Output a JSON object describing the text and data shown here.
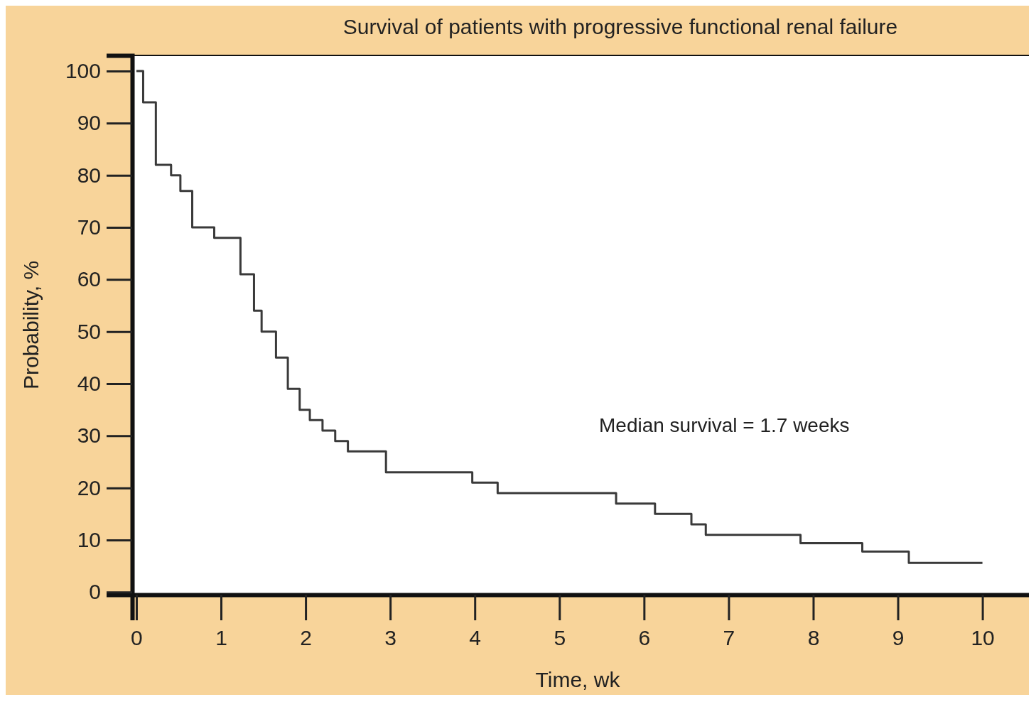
{
  "chart_data": {
    "type": "step",
    "title": "Survival of patients with progressive functional renal failure",
    "xlabel": "Time, wk",
    "ylabel": "Probability, %",
    "annotations": [
      "Median survival = 1.7 weeks"
    ],
    "x": [
      0,
      0.08,
      0.23,
      0.41,
      0.52,
      0.66,
      0.92,
      1.23,
      1.39,
      1.48,
      1.65,
      1.79,
      1.93,
      2.05,
      2.2,
      2.35,
      2.5,
      2.95,
      3.97,
      4.27,
      5.67,
      6.13,
      6.56,
      6.73,
      7.85,
      8.58,
      9.13,
      10.0
    ],
    "series": [
      {
        "color": "#3a3a3a",
        "values": [
          100,
          94,
          82,
          80,
          77,
          70,
          68,
          61,
          54,
          50,
          45,
          39,
          35,
          33,
          31,
          29,
          27,
          23,
          21,
          19,
          17,
          15,
          13,
          11,
          9.4,
          7.8,
          5.6,
          5.6
        ]
      }
    ],
    "xlim": [
      -0.05,
      10.65
    ],
    "ylim": [
      -0.5,
      103
    ],
    "xticks": [
      0,
      1,
      2,
      3,
      4,
      5,
      6,
      7,
      8,
      9,
      10
    ],
    "yticks": [
      0,
      10,
      20,
      30,
      40,
      50,
      60,
      70,
      80,
      90,
      100
    ],
    "grid": false,
    "marker": "none",
    "line_style": "solid"
  }
}
